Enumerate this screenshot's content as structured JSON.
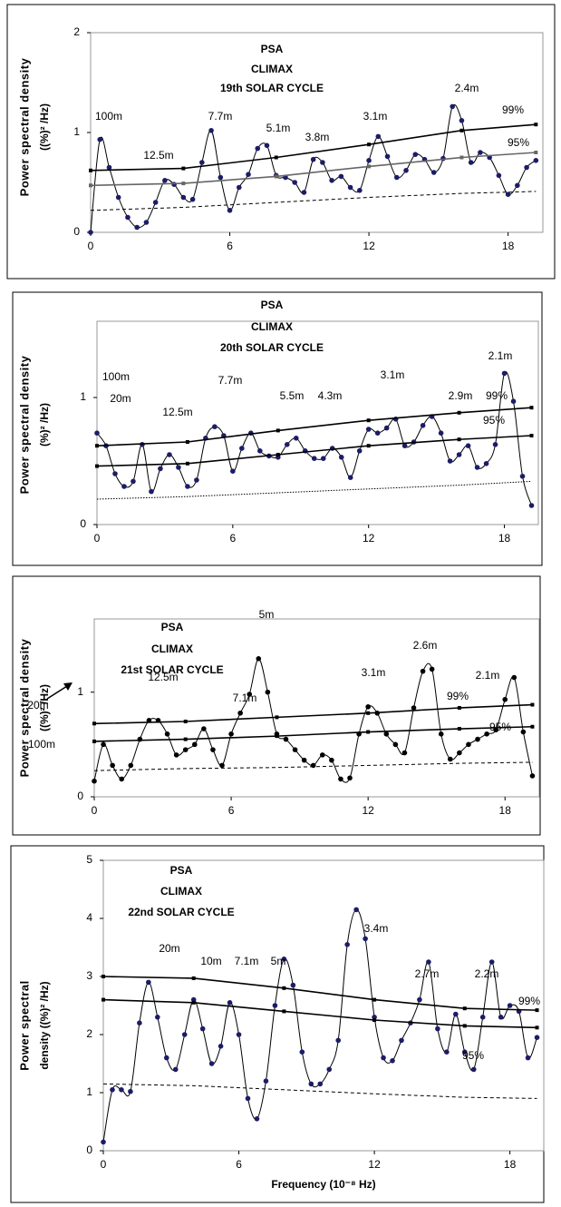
{
  "chart_data": [
    {
      "type": "line",
      "title": "PSA",
      "subtitle": "CLIMAX",
      "cycle": "19th SOLAR CYCLE",
      "y_label": "Power spectral density",
      "y_unit": "((%)² /Hz)",
      "xlim": [
        0,
        19.5
      ],
      "ylim": [
        0,
        2
      ],
      "xticks": [
        0,
        6,
        12,
        18
      ],
      "yticks": [
        0,
        1,
        2
      ],
      "annotations": [
        "100m",
        "12.5m",
        "7.7m",
        "5.1m",
        "3.8m",
        "3.1m",
        "2.4m"
      ],
      "series": [
        {
          "style": "dots",
          "color": "#000000",
          "marker_color": "#1c1c66",
          "x": [
            0,
            0.4,
            0.8,
            1.2,
            1.6,
            2,
            2.4,
            2.8,
            3.2,
            3.6,
            4,
            4.4,
            4.8,
            5.2,
            5.6,
            6,
            6.4,
            6.8,
            7.2,
            7.6,
            8,
            8.4,
            8.8,
            9.2,
            9.6,
            10,
            10.4,
            10.8,
            11.2,
            11.6,
            12,
            12.4,
            12.8,
            13.2,
            13.6,
            14,
            14.4,
            14.8,
            15.2,
            15.6,
            16,
            16.4,
            16.8,
            17.2,
            17.6,
            18,
            18.4,
            18.8,
            19.2
          ],
          "values": [
            0,
            0.93,
            0.65,
            0.35,
            0.15,
            0.05,
            0.1,
            0.3,
            0.52,
            0.48,
            0.35,
            0.33,
            0.7,
            1.02,
            0.55,
            0.22,
            0.45,
            0.58,
            0.84,
            0.87,
            0.57,
            0.55,
            0.5,
            0.4,
            0.73,
            0.7,
            0.52,
            0.56,
            0.45,
            0.42,
            0.72,
            0.96,
            0.76,
            0.55,
            0.62,
            0.78,
            0.73,
            0.6,
            0.74,
            1.26,
            1.12,
            0.7,
            0.8,
            0.75,
            0.57,
            0.38,
            0.47,
            0.65,
            0.72
          ]
        },
        {
          "name": "99%",
          "style": "markers",
          "color": "#000000",
          "x": [
            0,
            4,
            8,
            12,
            16,
            19.2
          ],
          "values": [
            0.62,
            0.64,
            0.75,
            0.88,
            1.02,
            1.08
          ]
        },
        {
          "name": "95%",
          "style": "markers",
          "color": "#666666",
          "x": [
            0,
            4,
            8,
            12,
            16,
            19.2
          ],
          "values": [
            0.47,
            0.49,
            0.56,
            0.66,
            0.75,
            0.8
          ]
        },
        {
          "style": "dashed",
          "color": "#000000",
          "x": [
            0,
            4,
            8,
            12,
            16,
            19.2
          ],
          "values": [
            0.22,
            0.25,
            0.3,
            0.35,
            0.39,
            0.41
          ]
        }
      ]
    },
    {
      "type": "line",
      "title": "PSA",
      "subtitle": "CLIMAX",
      "cycle": "20th SOLAR CYCLE",
      "y_label": "Power spectral density",
      "y_unit": "(%)² /Hz)",
      "xlim": [
        0,
        19.5
      ],
      "ylim": [
        0,
        1.6
      ],
      "xticks": [
        0,
        6,
        12,
        18
      ],
      "yticks": [
        0,
        1
      ],
      "annotations": [
        "100m",
        "20m",
        "12.5m",
        "7.7m",
        "5.5m",
        "4.3m",
        "3.1m",
        "2.9m",
        "2.1m"
      ],
      "series": [
        {
          "style": "dots",
          "color": "#000000",
          "marker_color": "#1c1c66",
          "x": [
            0,
            0.4,
            0.8,
            1.2,
            1.6,
            2,
            2.4,
            2.8,
            3.2,
            3.6,
            4,
            4.4,
            4.8,
            5.2,
            5.6,
            6,
            6.4,
            6.8,
            7.2,
            7.6,
            8,
            8.4,
            8.8,
            9.2,
            9.6,
            10,
            10.4,
            10.8,
            11.2,
            11.6,
            12,
            12.4,
            12.8,
            13.2,
            13.6,
            14,
            14.4,
            14.8,
            15.2,
            15.6,
            16,
            16.4,
            16.8,
            17.2,
            17.6,
            18,
            18.4,
            18.8,
            19.2
          ],
          "values": [
            0.72,
            0.62,
            0.4,
            0.3,
            0.34,
            0.63,
            0.26,
            0.44,
            0.55,
            0.45,
            0.3,
            0.35,
            0.68,
            0.77,
            0.7,
            0.42,
            0.6,
            0.72,
            0.58,
            0.54,
            0.53,
            0.63,
            0.68,
            0.58,
            0.52,
            0.52,
            0.6,
            0.53,
            0.37,
            0.58,
            0.75,
            0.72,
            0.76,
            0.83,
            0.62,
            0.65,
            0.78,
            0.85,
            0.72,
            0.5,
            0.55,
            0.62,
            0.45,
            0.48,
            0.63,
            1.19,
            0.97,
            0.38,
            0.15
          ]
        },
        {
          "name": "99%",
          "style": "markers",
          "color": "#000000",
          "x": [
            0,
            4,
            8,
            12,
            16,
            19.2
          ],
          "values": [
            0.62,
            0.65,
            0.74,
            0.82,
            0.88,
            0.92
          ]
        },
        {
          "name": "95%",
          "style": "markers",
          "color": "#000000",
          "x": [
            0,
            4,
            8,
            12,
            16,
            19.2
          ],
          "values": [
            0.46,
            0.48,
            0.55,
            0.62,
            0.67,
            0.7
          ]
        },
        {
          "style": "dotted",
          "color": "#000000",
          "x": [
            0,
            4,
            8,
            12,
            16,
            19.2
          ],
          "values": [
            0.2,
            0.22,
            0.25,
            0.28,
            0.31,
            0.34
          ]
        }
      ]
    },
    {
      "type": "line",
      "title": "PSA",
      "subtitle": "CLIMAX",
      "cycle": "21st SOLAR CYCLE",
      "y_label": "Power spectral density",
      "y_unit": "((%)² /Hz)",
      "xlim": [
        0,
        19.5
      ],
      "ylim": [
        0,
        1.7
      ],
      "xticks": [
        0,
        6,
        12,
        18
      ],
      "yticks": [
        0,
        1
      ],
      "annotations": [
        "20m",
        "12.5m",
        "7.1m",
        "5m",
        "3.1m",
        "2.6m",
        "2.1m",
        "100m"
      ],
      "series": [
        {
          "style": "dots",
          "color": "#000000",
          "marker_color": "#000000",
          "x": [
            0,
            0.4,
            0.8,
            1.2,
            1.6,
            2,
            2.4,
            2.8,
            3.2,
            3.6,
            4,
            4.4,
            4.8,
            5.2,
            5.6,
            6,
            6.4,
            6.8,
            7.2,
            7.6,
            8,
            8.4,
            8.8,
            9.2,
            9.6,
            10,
            10.4,
            10.8,
            11.2,
            11.6,
            12,
            12.4,
            12.8,
            13.2,
            13.6,
            14,
            14.4,
            14.8,
            15.2,
            15.6,
            16,
            16.4,
            16.8,
            17.2,
            17.6,
            18,
            18.4,
            18.8,
            19.2
          ],
          "values": [
            0.15,
            0.5,
            0.3,
            0.17,
            0.3,
            0.55,
            0.73,
            0.73,
            0.6,
            0.4,
            0.45,
            0.5,
            0.65,
            0.45,
            0.3,
            0.6,
            0.8,
            0.98,
            1.32,
            1.0,
            0.6,
            0.55,
            0.45,
            0.35,
            0.3,
            0.4,
            0.35,
            0.17,
            0.18,
            0.6,
            0.86,
            0.8,
            0.6,
            0.5,
            0.42,
            0.85,
            1.2,
            1.22,
            0.6,
            0.36,
            0.42,
            0.5,
            0.55,
            0.6,
            0.64,
            0.93,
            1.14,
            0.62,
            0.2
          ]
        },
        {
          "name": "99%",
          "style": "markers",
          "color": "#000000",
          "x": [
            0,
            4,
            8,
            12,
            16,
            19.2
          ],
          "values": [
            0.7,
            0.72,
            0.76,
            0.8,
            0.85,
            0.88
          ]
        },
        {
          "name": "95%",
          "style": "markers",
          "color": "#000000",
          "x": [
            0,
            4,
            8,
            12,
            16,
            19.2
          ],
          "values": [
            0.53,
            0.55,
            0.58,
            0.62,
            0.65,
            0.67
          ]
        },
        {
          "style": "dashed",
          "color": "#000000",
          "x": [
            0,
            4,
            8,
            12,
            16,
            19.2
          ],
          "values": [
            0.25,
            0.27,
            0.28,
            0.3,
            0.32,
            0.33
          ]
        }
      ]
    },
    {
      "type": "line",
      "title": "PSA",
      "subtitle": "CLIMAX",
      "cycle": "22nd SOLAR CYCLE",
      "y_label": "Power spectral",
      "y_unit": "density ((%)² /Hz)",
      "x_label": "Frequency (10⁻⁸ Hz)",
      "xlim": [
        0,
        19.5
      ],
      "ylim": [
        0,
        5
      ],
      "xticks": [
        0,
        6,
        12,
        18
      ],
      "yticks": [
        0,
        1,
        2,
        3,
        4,
        5
      ],
      "annotations": [
        "20m",
        "10m",
        "7.1m",
        "5m",
        "3.4m",
        "2.7m",
        "2.2m"
      ],
      "series": [
        {
          "style": "dots",
          "color": "#000000",
          "marker_color": "#1c1c66",
          "x": [
            0,
            0.4,
            0.8,
            1.2,
            1.6,
            2,
            2.4,
            2.8,
            3.2,
            3.6,
            4,
            4.4,
            4.8,
            5.2,
            5.6,
            6,
            6.4,
            6.8,
            7.2,
            7.6,
            8,
            8.4,
            8.8,
            9.2,
            9.6,
            10,
            10.4,
            10.8,
            11.2,
            11.6,
            12,
            12.4,
            12.8,
            13.2,
            13.6,
            14,
            14.4,
            14.8,
            15.2,
            15.6,
            16,
            16.4,
            16.8,
            17.2,
            17.6,
            18,
            18.4,
            18.8,
            19.2
          ],
          "values": [
            0.15,
            1.05,
            1.05,
            1.02,
            2.2,
            2.9,
            2.3,
            1.6,
            1.4,
            2.0,
            2.6,
            2.1,
            1.5,
            1.8,
            2.55,
            2.0,
            0.9,
            0.55,
            1.2,
            2.5,
            3.3,
            2.85,
            1.7,
            1.15,
            1.15,
            1.4,
            1.9,
            3.55,
            4.15,
            3.65,
            2.3,
            1.6,
            1.55,
            1.9,
            2.2,
            2.6,
            3.25,
            2.1,
            1.7,
            2.35,
            1.7,
            1.4,
            2.3,
            3.25,
            2.3,
            2.5,
            2.4,
            1.6,
            1.95
          ]
        },
        {
          "name": "99%",
          "style": "markers",
          "color": "#000000",
          "x": [
            0,
            4,
            8,
            12,
            16,
            19.2
          ],
          "values": [
            3.0,
            2.97,
            2.8,
            2.6,
            2.45,
            2.42
          ]
        },
        {
          "name": "95%",
          "style": "markers",
          "color": "#000000",
          "x": [
            0,
            4,
            8,
            12,
            16,
            19.2
          ],
          "values": [
            2.6,
            2.55,
            2.4,
            2.25,
            2.15,
            2.12
          ]
        },
        {
          "style": "dashed",
          "color": "#000000",
          "x": [
            0,
            4,
            8,
            12,
            16,
            19.2
          ],
          "values": [
            1.15,
            1.12,
            1.05,
            0.98,
            0.92,
            0.9
          ]
        }
      ]
    }
  ]
}
